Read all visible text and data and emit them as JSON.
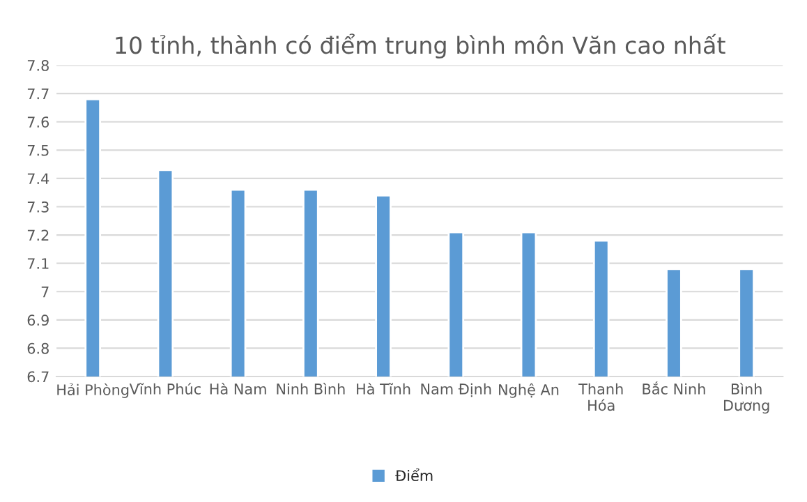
{
  "chart_data": {
    "type": "bar",
    "title": "10 tỉnh, thành có điểm trung bình môn Văn cao nhất",
    "categories": [
      "Hải Phòng",
      "Vĩnh Phúc",
      "Hà Nam",
      "Ninh Bình",
      "Hà Tĩnh",
      "Nam Định",
      "Nghệ An",
      "Thanh\nHóa",
      "Bắc Ninh",
      "Bình\nDương"
    ],
    "series": [
      {
        "name": "Điểm",
        "color": "#5b9bd5",
        "values": [
          7.68,
          7.43,
          7.36,
          7.36,
          7.34,
          7.21,
          7.21,
          7.18,
          7.08,
          7.08
        ]
      }
    ],
    "ylim": [
      6.7,
      7.8
    ],
    "yticks": [
      6.7,
      6.8,
      6.9,
      7,
      7.1,
      7.2,
      7.3,
      7.4,
      7.5,
      7.6,
      7.7,
      7.8
    ],
    "grid": "y",
    "legend": "bottom"
  }
}
